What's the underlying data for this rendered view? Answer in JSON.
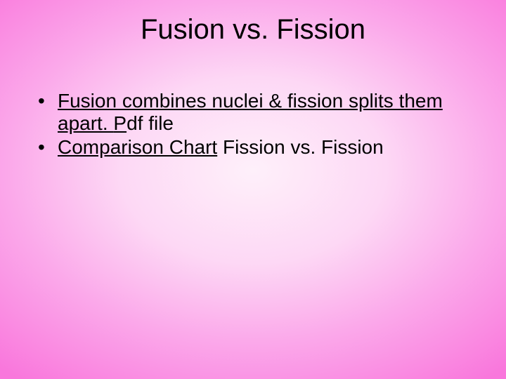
{
  "slide": {
    "title": "Fusion vs. Fission",
    "bullets": [
      {
        "link1": "Fusion combines nuclei & fission splits them apart. ",
        "link2": "P",
        "tail": "df file"
      },
      {
        "link1": "Comparison Chart",
        "tail": " Fission vs. Fission"
      }
    ],
    "style": {
      "title_fontsize": 40,
      "body_fontsize": 28,
      "text_color": "#000000",
      "gradient_inner": "#fef0fa",
      "gradient_outer": "#f977dc"
    }
  }
}
